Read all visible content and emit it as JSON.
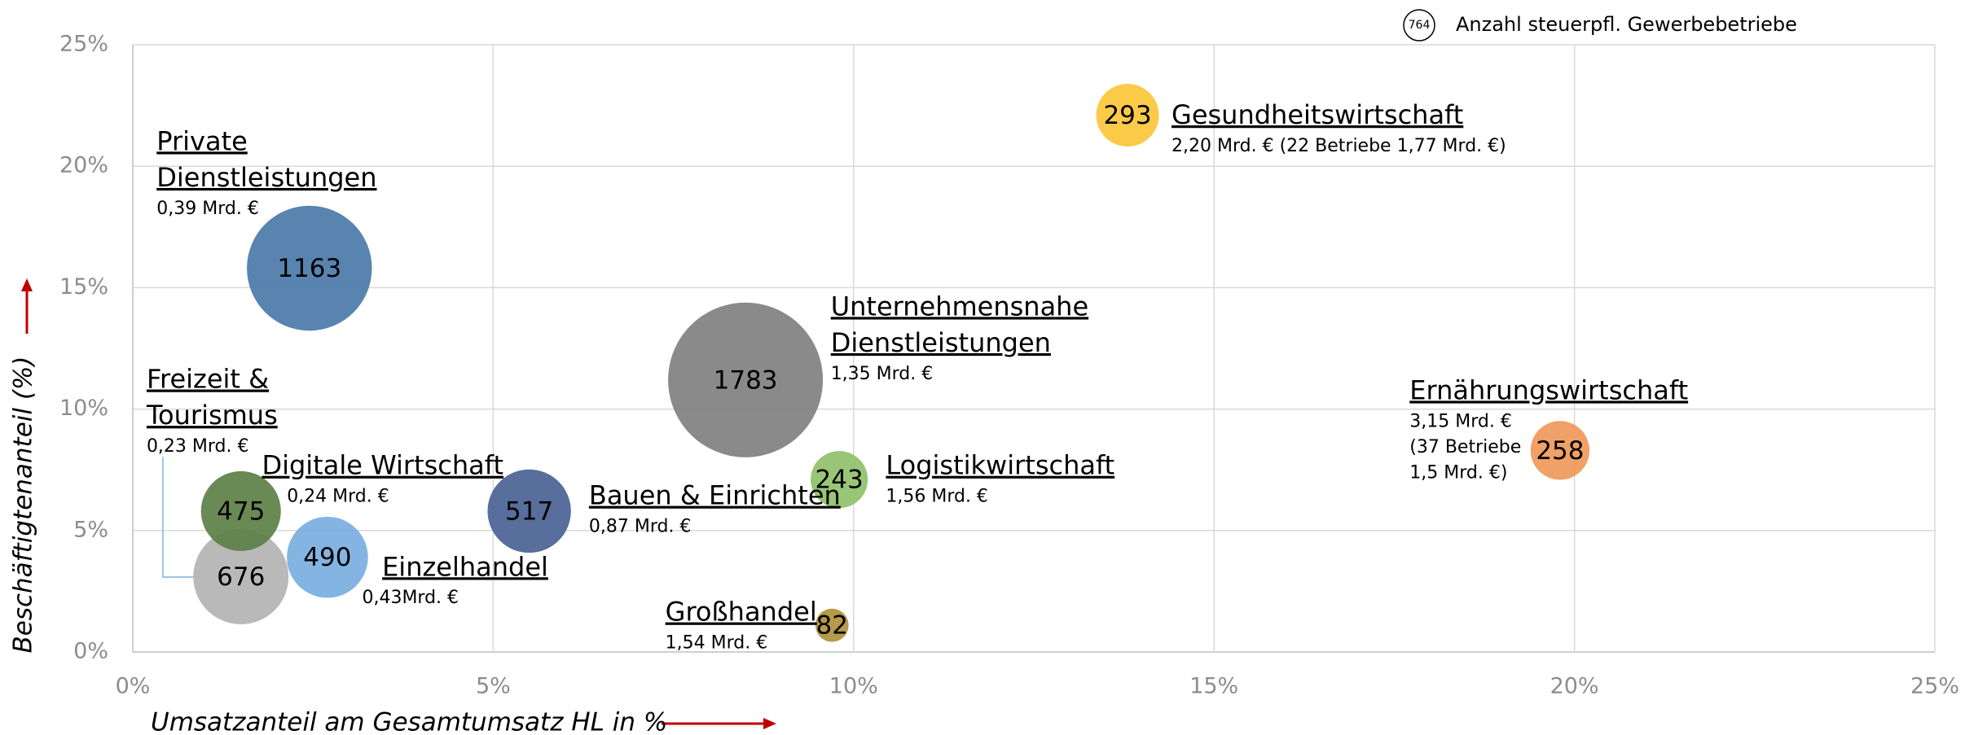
{
  "chart_data": {
    "type": "bubble",
    "x_label": "Umsatzanteil am Gesamtumsatz HL in %",
    "y_label": "Beschäftigtenanteil (%)",
    "legend": {
      "size_sample": 764,
      "label": "Anzahl steuerpfl. Gewerbebetriebe"
    },
    "xlim": [
      0,
      25
    ],
    "ylim": [
      0,
      25
    ],
    "xticks": [
      {
        "value": 0,
        "label": "0%"
      },
      {
        "value": 5,
        "label": "5%"
      },
      {
        "value": 10,
        "label": "10%"
      },
      {
        "value": 15,
        "label": "15%"
      },
      {
        "value": 20,
        "label": "20%"
      },
      {
        "value": 25,
        "label": "25%"
      }
    ],
    "yticks": [
      {
        "value": 0,
        "label": "0%"
      },
      {
        "value": 5,
        "label": "5%"
      },
      {
        "value": 10,
        "label": "10%"
      },
      {
        "value": 15,
        "label": "15%"
      },
      {
        "value": 20,
        "label": "20%"
      },
      {
        "value": 25,
        "label": "25%"
      }
    ],
    "grid": true,
    "points": [
      {
        "name": [
          "Private",
          "Dienstleistungen"
        ],
        "note": [
          "0,39 Mrd. €"
        ],
        "x": 2.45,
        "y": 15.8,
        "size": 1163,
        "color": "#4a7aa8"
      },
      {
        "name": [
          "Unternehmensnahe",
          "Dienstleistungen"
        ],
        "note": [
          "1,35 Mrd. €"
        ],
        "x": 8.5,
        "y": 11.2,
        "size": 1783,
        "color": "#808080"
      },
      {
        "name": [
          "Gesundheitswirtschaft"
        ],
        "note": [
          "2,20 Mrd. € (22 Betriebe 1,77 Mrd. €)"
        ],
        "x": 13.8,
        "y": 22.1,
        "size": 293,
        "color": "#fcc63a"
      },
      {
        "name": [
          "Ernährungswirtschaft"
        ],
        "note": [
          "3,15 Mrd. €",
          "(37 Betriebe",
          "1,5 Mrd. €)"
        ],
        "x": 19.8,
        "y": 8.3,
        "size": 258,
        "color": "#ef995a"
      },
      {
        "name": [
          "Logistikwirtschaft"
        ],
        "note": [
          "1,56 Mrd. €"
        ],
        "x": 9.8,
        "y": 7.1,
        "size": 243,
        "color": "#8fc06a"
      },
      {
        "name": [
          "Bauen & Einrichten"
        ],
        "note": [
          "0,87 Mrd. €"
        ],
        "x": 5.5,
        "y": 5.8,
        "size": 517,
        "color": "#4a6294"
      },
      {
        "name": [
          "Freizeit &",
          "Tourismus"
        ],
        "note": [
          "0,23 Mrd. €"
        ],
        "x": 1.5,
        "y": 3.1,
        "size": 676,
        "color": "#b3b3b3"
      },
      {
        "name": [
          "Digitale Wirtschaft"
        ],
        "note": [
          "0,24 Mrd. €"
        ],
        "x": 1.5,
        "y": 5.8,
        "size": 475,
        "color": "#5c7f46"
      },
      {
        "name": [
          "Einzelhandel"
        ],
        "note": [
          "0,43Mrd. €"
        ],
        "x": 2.7,
        "y": 3.9,
        "size": 490,
        "color": "#7aaee0"
      },
      {
        "name": [
          "Großhandel"
        ],
        "note": [
          "1,54 Mrd. €"
        ],
        "x": 9.7,
        "y": 1.1,
        "size": 82,
        "color": "#b0903a"
      }
    ]
  }
}
